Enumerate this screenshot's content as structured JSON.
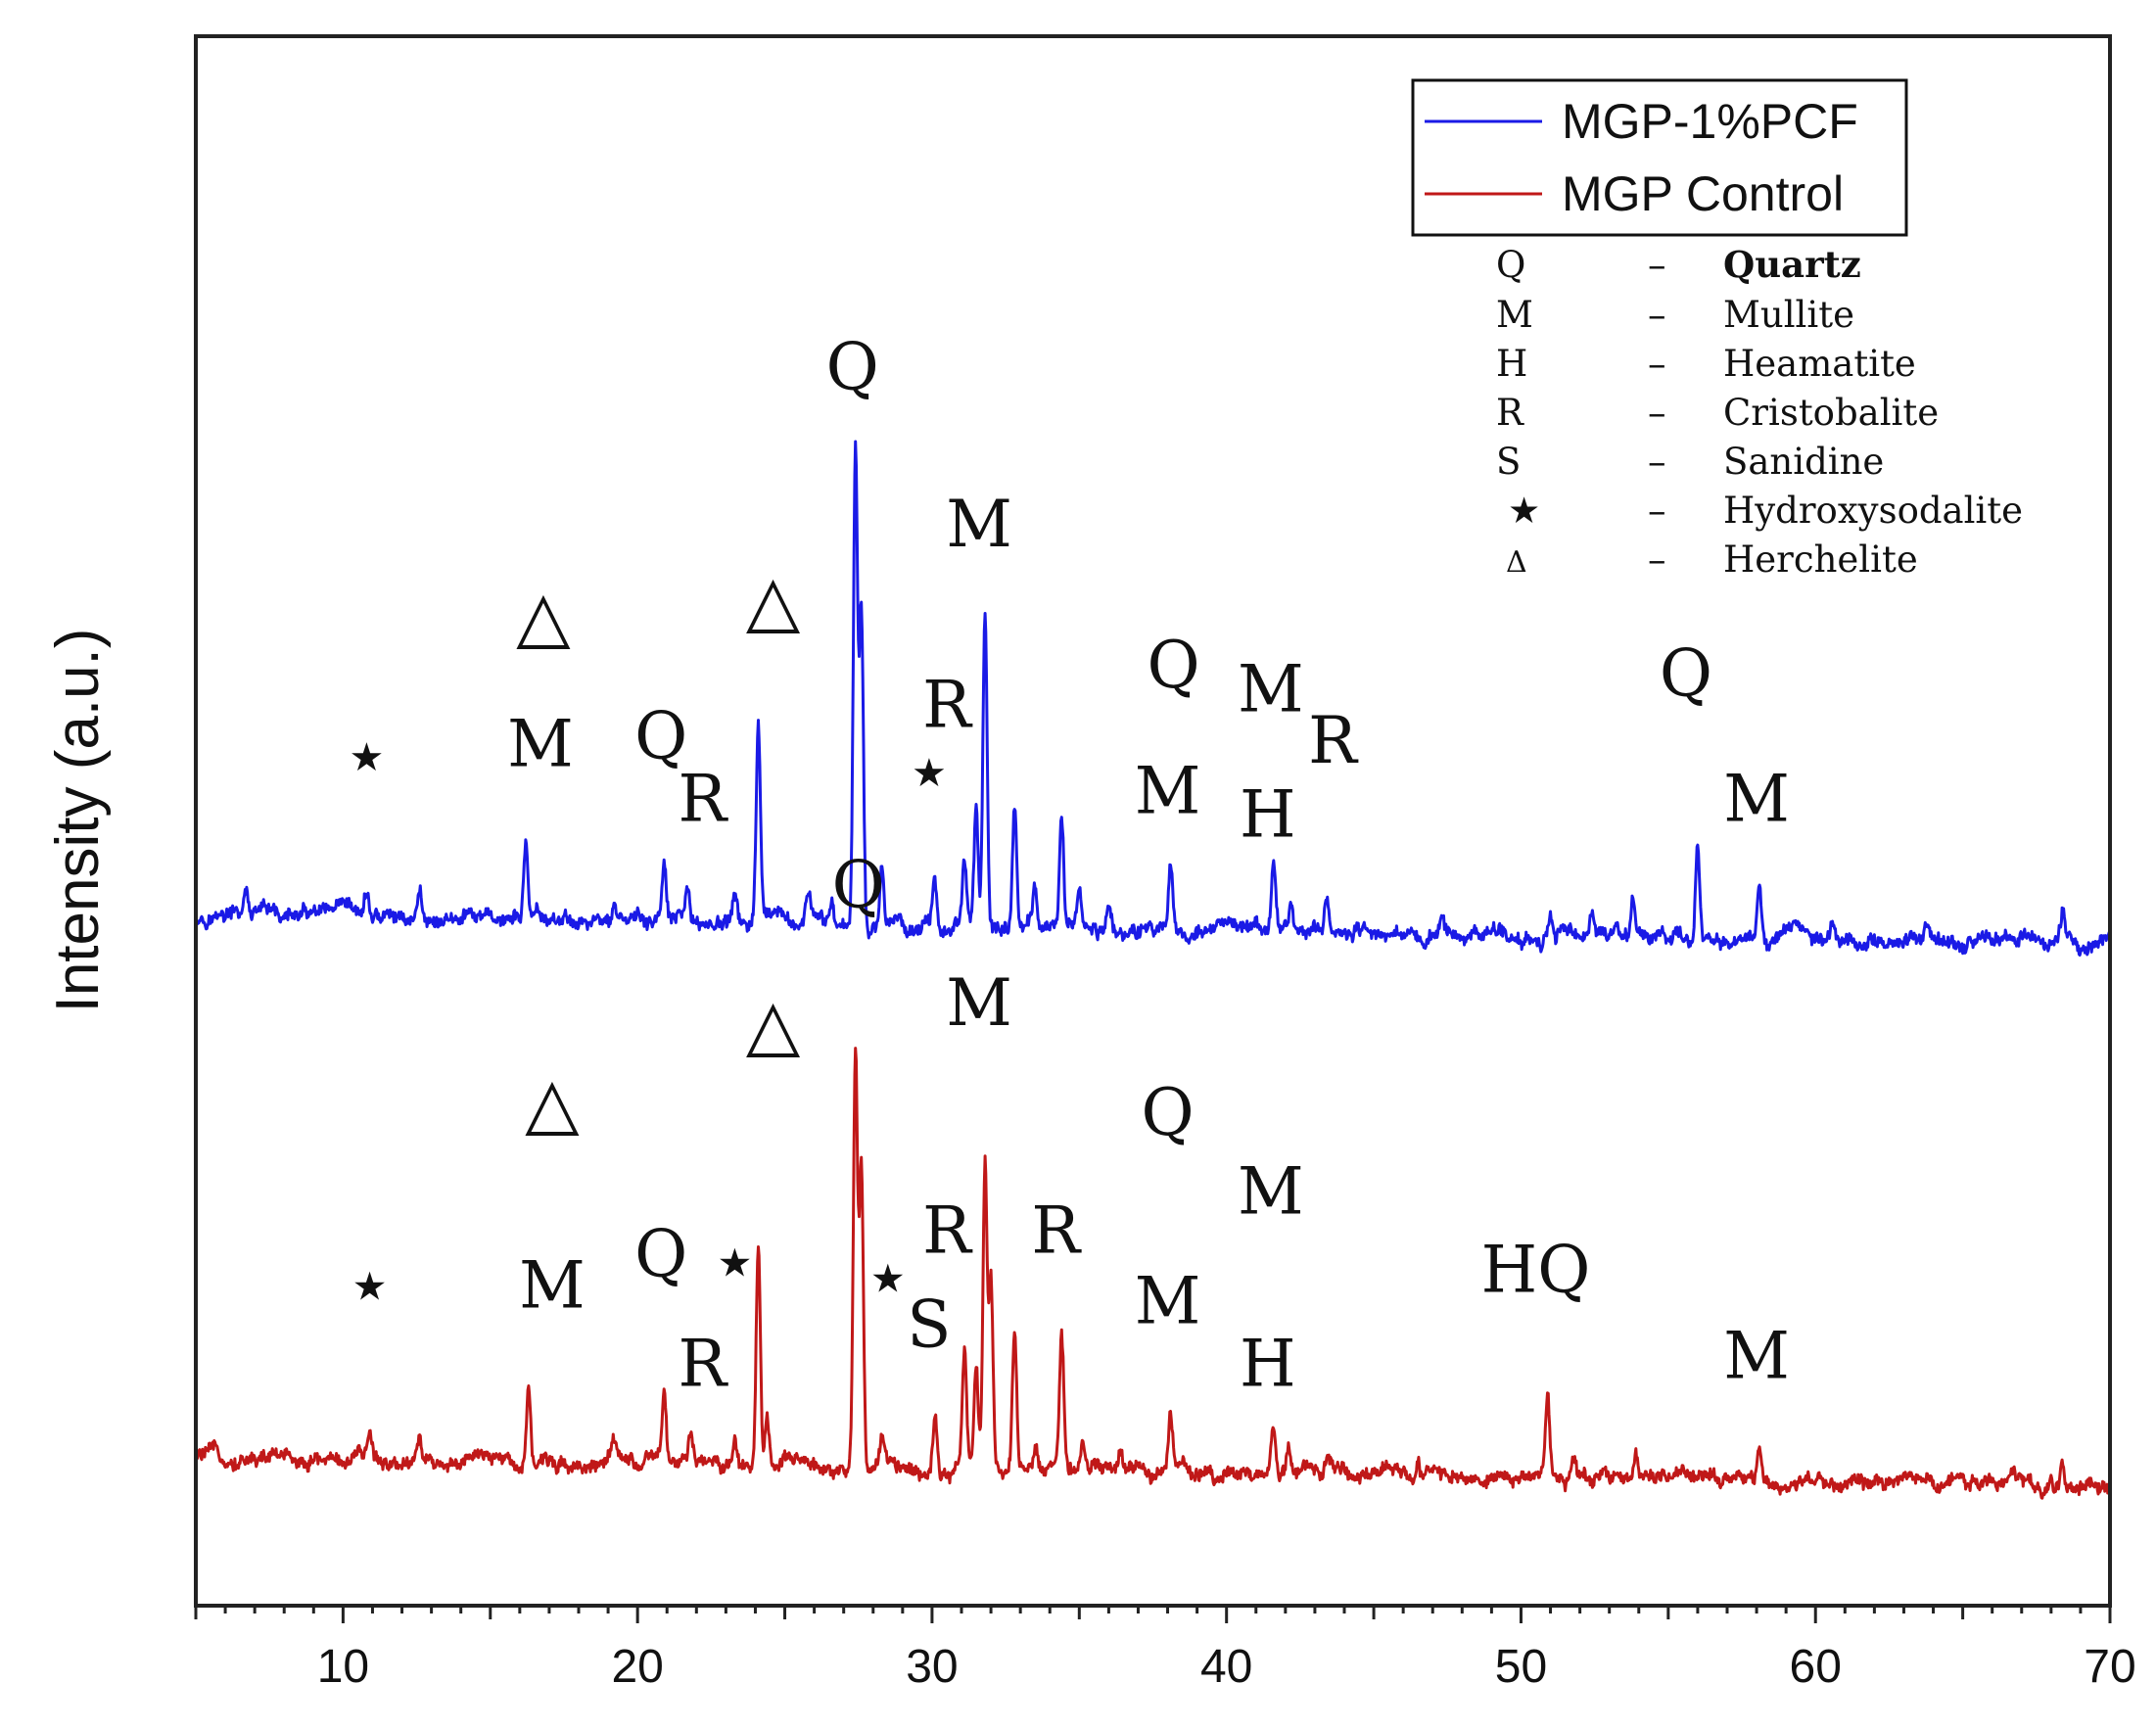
{
  "chart_data": {
    "type": "line",
    "title": "",
    "xlabel": "",
    "ylabel": "Intensity (a.u.)",
    "xlim": [
      5,
      70
    ],
    "ylim": [
      0,
      1
    ],
    "xticks": [
      10,
      20,
      30,
      40,
      50,
      60,
      70
    ],
    "grid": false,
    "legend_position": "top-right",
    "series": [
      {
        "name": "MGP-1%PCF",
        "color": "#1a1ae6",
        "baseline": 0.44,
        "peaks": [
          {
            "x": 6.7,
            "h": 0.015
          },
          {
            "x": 10.8,
            "h": 0.015
          },
          {
            "x": 12.6,
            "h": 0.018
          },
          {
            "x": 16.2,
            "h": 0.05
          },
          {
            "x": 19.2,
            "h": 0.012
          },
          {
            "x": 20.9,
            "h": 0.035
          },
          {
            "x": 21.7,
            "h": 0.018
          },
          {
            "x": 23.3,
            "h": 0.015
          },
          {
            "x": 24.1,
            "h": 0.125
          },
          {
            "x": 25.8,
            "h": 0.02
          },
          {
            "x": 26.6,
            "h": 0.015
          },
          {
            "x": 27.4,
            "h": 0.31
          },
          {
            "x": 27.6,
            "h": 0.2
          },
          {
            "x": 28.3,
            "h": 0.04
          },
          {
            "x": 30.1,
            "h": 0.03
          },
          {
            "x": 31.1,
            "h": 0.04
          },
          {
            "x": 31.5,
            "h": 0.07
          },
          {
            "x": 31.8,
            "h": 0.2
          },
          {
            "x": 32.8,
            "h": 0.08
          },
          {
            "x": 33.5,
            "h": 0.025
          },
          {
            "x": 34.4,
            "h": 0.07
          },
          {
            "x": 35.0,
            "h": 0.025
          },
          {
            "x": 36.0,
            "h": 0.015
          },
          {
            "x": 38.1,
            "h": 0.045
          },
          {
            "x": 41.6,
            "h": 0.04
          },
          {
            "x": 42.2,
            "h": 0.02
          },
          {
            "x": 43.4,
            "h": 0.02
          },
          {
            "x": 47.3,
            "h": 0.01
          },
          {
            "x": 51.0,
            "h": 0.015
          },
          {
            "x": 52.4,
            "h": 0.012
          },
          {
            "x": 53.8,
            "h": 0.025
          },
          {
            "x": 56.0,
            "h": 0.065
          },
          {
            "x": 58.1,
            "h": 0.035
          },
          {
            "x": 60.6,
            "h": 0.012
          },
          {
            "x": 63.8,
            "h": 0.012
          },
          {
            "x": 68.4,
            "h": 0.02
          }
        ]
      },
      {
        "name": "MGP Control",
        "color": "#c01818",
        "baseline": 0.095,
        "peaks": [
          {
            "x": 10.9,
            "h": 0.015
          },
          {
            "x": 12.6,
            "h": 0.018
          },
          {
            "x": 16.3,
            "h": 0.05
          },
          {
            "x": 19.2,
            "h": 0.012
          },
          {
            "x": 20.9,
            "h": 0.04
          },
          {
            "x": 21.8,
            "h": 0.015
          },
          {
            "x": 23.3,
            "h": 0.015
          },
          {
            "x": 24.1,
            "h": 0.145
          },
          {
            "x": 24.4,
            "h": 0.03
          },
          {
            "x": 27.4,
            "h": 0.26
          },
          {
            "x": 27.6,
            "h": 0.19
          },
          {
            "x": 28.3,
            "h": 0.02
          },
          {
            "x": 30.1,
            "h": 0.035
          },
          {
            "x": 31.1,
            "h": 0.075
          },
          {
            "x": 31.5,
            "h": 0.065
          },
          {
            "x": 31.8,
            "h": 0.195
          },
          {
            "x": 32.0,
            "h": 0.12
          },
          {
            "x": 32.8,
            "h": 0.085
          },
          {
            "x": 33.5,
            "h": 0.02
          },
          {
            "x": 34.4,
            "h": 0.08
          },
          {
            "x": 35.1,
            "h": 0.02
          },
          {
            "x": 36.4,
            "h": 0.012
          },
          {
            "x": 38.1,
            "h": 0.035
          },
          {
            "x": 41.6,
            "h": 0.03
          },
          {
            "x": 42.1,
            "h": 0.02
          },
          {
            "x": 43.4,
            "h": 0.012
          },
          {
            "x": 46.5,
            "h": 0.012
          },
          {
            "x": 50.9,
            "h": 0.05
          },
          {
            "x": 51.8,
            "h": 0.015
          },
          {
            "x": 53.9,
            "h": 0.02
          },
          {
            "x": 58.1,
            "h": 0.02
          },
          {
            "x": 68.4,
            "h": 0.015
          }
        ]
      }
    ],
    "annotations": [
      {
        "text": "Q",
        "x": 27.3,
        "y": 0.775
      },
      {
        "text": "M",
        "x": 31.6,
        "y": 0.675
      },
      {
        "text": "△",
        "x": 16.8,
        "y": 0.615
      },
      {
        "text": "△",
        "x": 24.6,
        "y": 0.625
      },
      {
        "text": "Q",
        "x": 38.2,
        "y": 0.585
      },
      {
        "text": "M",
        "x": 41.5,
        "y": 0.57
      },
      {
        "text": "Q",
        "x": 55.6,
        "y": 0.58
      },
      {
        "text": "R",
        "x": 30.5,
        "y": 0.56
      },
      {
        "text": "★",
        "x": 10.8,
        "y": 0.532
      },
      {
        "text": "M",
        "x": 16.7,
        "y": 0.535
      },
      {
        "text": "Q",
        "x": 20.8,
        "y": 0.54
      },
      {
        "text": "R",
        "x": 43.6,
        "y": 0.537
      },
      {
        "text": "R",
        "x": 22.2,
        "y": 0.5
      },
      {
        "text": "★",
        "x": 29.9,
        "y": 0.522
      },
      {
        "text": "M",
        "x": 38.0,
        "y": 0.505
      },
      {
        "text": "H",
        "x": 41.4,
        "y": 0.49
      },
      {
        "text": "M",
        "x": 58.0,
        "y": 0.5
      },
      {
        "text": "Q",
        "x": 27.5,
        "y": 0.445
      },
      {
        "text": "M",
        "x": 31.6,
        "y": 0.37
      },
      {
        "text": "△",
        "x": 24.6,
        "y": 0.355
      },
      {
        "text": "△",
        "x": 17.1,
        "y": 0.305
      },
      {
        "text": "Q",
        "x": 38.0,
        "y": 0.3
      },
      {
        "text": "M",
        "x": 41.5,
        "y": 0.25
      },
      {
        "text": "R",
        "x": 30.5,
        "y": 0.225
      },
      {
        "text": "R",
        "x": 34.2,
        "y": 0.225
      },
      {
        "text": "HQ",
        "x": 50.5,
        "y": 0.2
      },
      {
        "text": "Q",
        "x": 20.8,
        "y": 0.21
      },
      {
        "text": "★",
        "x": 23.3,
        "y": 0.21
      },
      {
        "text": "★",
        "x": 28.5,
        "y": 0.2
      },
      {
        "text": "★",
        "x": 10.9,
        "y": 0.195
      },
      {
        "text": "M",
        "x": 17.1,
        "y": 0.19
      },
      {
        "text": "S",
        "x": 29.9,
        "y": 0.165
      },
      {
        "text": "M",
        "x": 38.0,
        "y": 0.18
      },
      {
        "text": "R",
        "x": 22.2,
        "y": 0.14
      },
      {
        "text": "H",
        "x": 41.4,
        "y": 0.14
      },
      {
        "text": "M",
        "x": 58.0,
        "y": 0.145
      }
    ],
    "phase_key": [
      {
        "symbol": "Q",
        "dash": "–",
        "name": "Quartz"
      },
      {
        "symbol": "M",
        "dash": "–",
        "name": "Mullite"
      },
      {
        "symbol": "H",
        "dash": "–",
        "name": "Heamatite"
      },
      {
        "symbol": "R",
        "dash": "–",
        "name": "Cristobalite"
      },
      {
        "symbol": "S",
        "dash": "–",
        "name": "Sanidine"
      },
      {
        "symbol": "★",
        "dash": "–",
        "name": "Hydroxysodalite"
      },
      {
        "symbol": "Δ",
        "dash": "–",
        "name": "Herchelite"
      }
    ]
  }
}
